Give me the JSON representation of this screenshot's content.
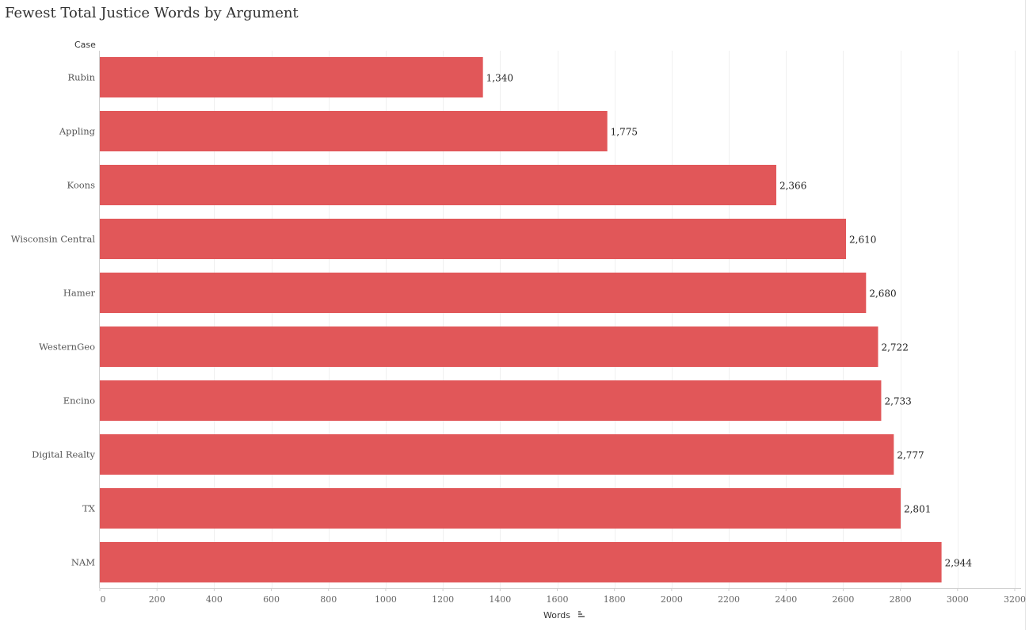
{
  "title": "Fewest Total Justice Words by Argument",
  "row_header": "Case",
  "sort_icon": "sort-descending-icon",
  "colors": {
    "bar": "#e15759",
    "grid": "#f0f0f0",
    "axis": "#cfcfcf"
  },
  "chart_data": {
    "type": "bar",
    "orientation": "horizontal",
    "title": "Fewest Total Justice Words by Argument",
    "xlabel": "Words",
    "ylabel": "Case",
    "categories": [
      "Rubin",
      "Appling",
      "Koons",
      "Wisconsin Central",
      "Hamer",
      "WesternGeo",
      "Encino",
      "Digital Realty",
      "TX",
      "NAM"
    ],
    "values": [
      1340,
      1775,
      2366,
      2610,
      2680,
      2722,
      2733,
      2777,
      2801,
      2944
    ],
    "value_labels": [
      "1,340",
      "1,775",
      "2,366",
      "2,610",
      "2,680",
      "2,722",
      "2,733",
      "2,777",
      "2,801",
      "2,944"
    ],
    "xlim": [
      0,
      3200
    ],
    "xticks": [
      0,
      200,
      400,
      600,
      800,
      1000,
      1200,
      1400,
      1600,
      1800,
      2000,
      2200,
      2400,
      2600,
      2800,
      3000,
      3200
    ],
    "grid": true,
    "legend": "none"
  }
}
